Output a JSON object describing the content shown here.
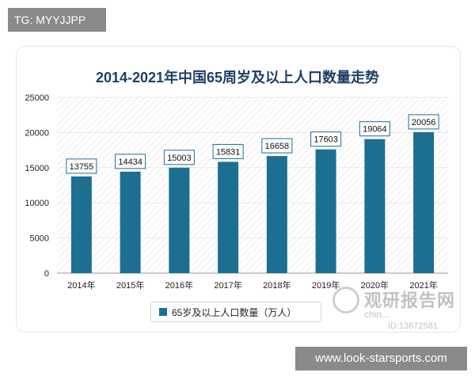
{
  "top_badge": "TG: MYYJJPP",
  "bottom_badge": "www.look-starsports.com",
  "watermark": {
    "title": "观研报告网",
    "subtitle": "chin...",
    "id": "ID:13672581"
  },
  "colors": {
    "bar": "#1d6f92",
    "grid": "#e7e7e7",
    "label_border": "#1d6f92",
    "title": "#1f3f66"
  },
  "chart_data": {
    "type": "bar",
    "title": "2014-2021年中国65周岁及以上人口数量走势",
    "categories": [
      "2014年",
      "2015年",
      "2016年",
      "2017年",
      "2018年",
      "2019年",
      "2020年",
      "2021年"
    ],
    "series": [
      {
        "name": "65岁及以上人口数量（万人）",
        "values": [
          13755,
          14434,
          15003,
          15831,
          16658,
          17603,
          19064,
          20056
        ]
      }
    ],
    "ylim": [
      0,
      25000
    ],
    "yticks": [
      0,
      5000,
      10000,
      15000,
      20000,
      25000
    ],
    "grid": true,
    "legend": "bottom"
  }
}
